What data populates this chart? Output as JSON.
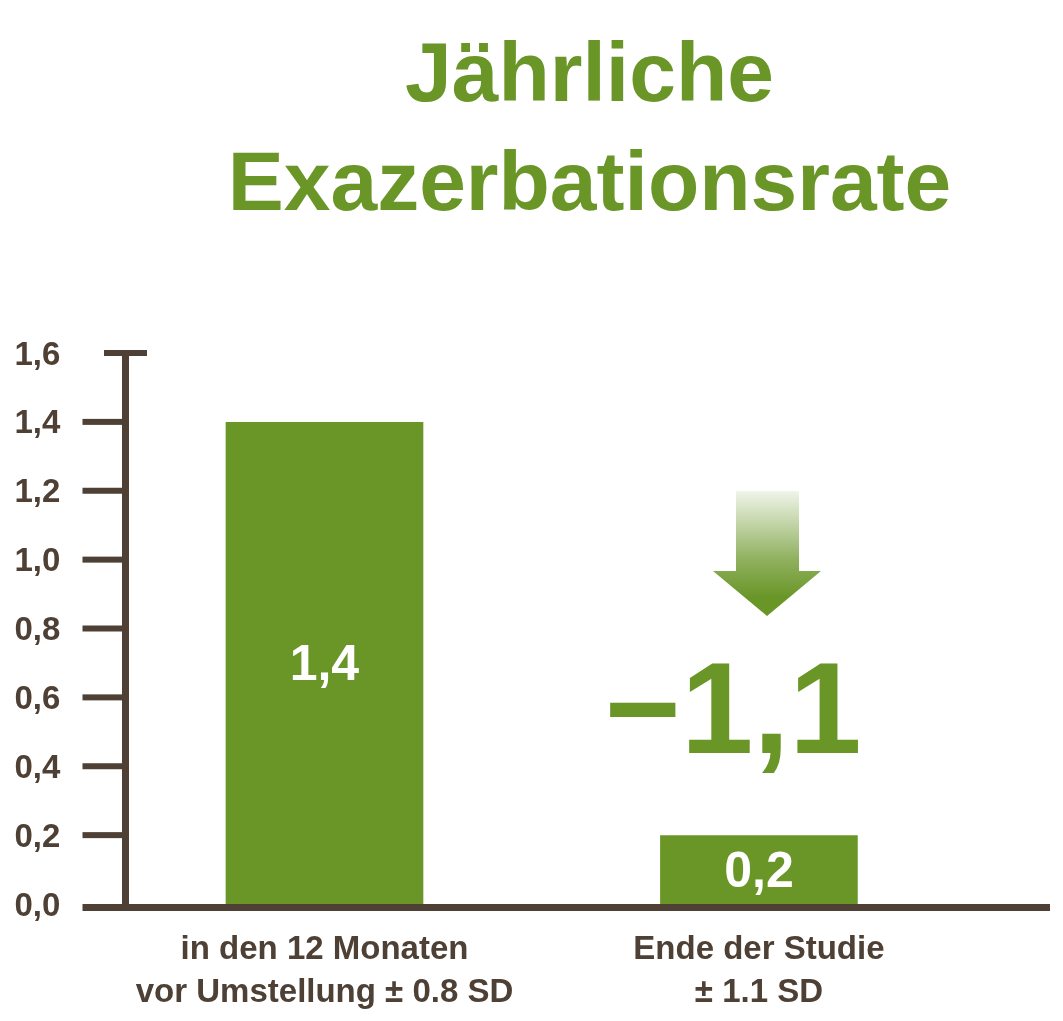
{
  "chart_data": {
    "type": "bar",
    "title": "Jährliche\nExazerbationsrate",
    "categories": [
      "in den 12 Monaten\nvor Umstellung ± 0.8 SD",
      "Ende der Studie\n± 1.1 SD"
    ],
    "values": [
      1.4,
      0.2
    ],
    "color": "#6a9628",
    "value_labels": [
      "1,4",
      "0,2"
    ],
    "ylim": [
      0,
      1.6
    ],
    "yticks": [
      {
        "value": 0,
        "label": "0,0"
      },
      {
        "value": 0.2,
        "label": "0,2"
      },
      {
        "value": 0.4,
        "label": "0,4"
      },
      {
        "value": 0.6,
        "label": "0,6"
      },
      {
        "value": 0.8,
        "label": "0,8"
      },
      {
        "value": 1.0,
        "label": "1,0"
      },
      {
        "value": 1.2,
        "label": "1,2"
      },
      {
        "value": 1.4,
        "label": "1,4"
      },
      {
        "value": 1.6,
        "label": "1,6"
      }
    ],
    "annotations": [
      "−1,1"
    ]
  }
}
